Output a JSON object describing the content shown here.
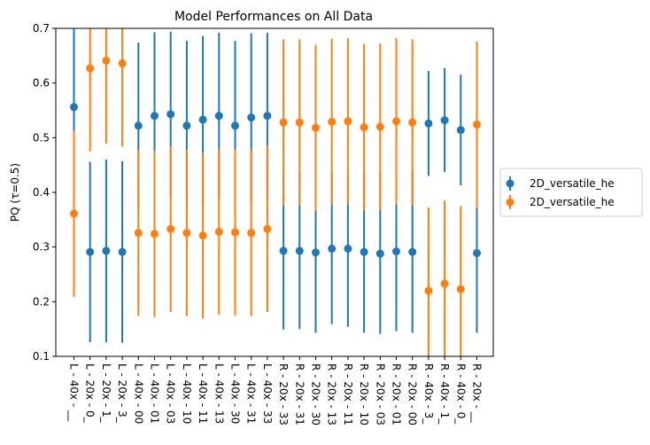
{
  "chart_data": {
    "type": "scatter",
    "title": "Model Performances on All Data",
    "xlabel": "",
    "ylabel": "PQ  (τ=0.5)",
    "ylim": [
      0.1,
      0.7
    ],
    "yticks": [
      "0.1",
      "0.2",
      "0.3",
      "0.4",
      "0.5",
      "0.6",
      "0.7"
    ],
    "grid": false,
    "legend_position": "outside-right",
    "categories": [
      "L - 40x - __",
      "L - 20x - 0_",
      "L - 20x - 1_",
      "L - 20x - 3_",
      "L - 40x - 00",
      "L - 40x - 01",
      "L - 40x - 03",
      "L - 40x - 10",
      "L - 40x - 11",
      "L - 40x - 13",
      "L - 40x - 30",
      "L - 40x - 31",
      "L - 40x - 33",
      "R - 20x - 33",
      "R - 20x - 31",
      "R - 20x - 30",
      "R - 20x - 13",
      "R - 20x - 11",
      "R - 20x - 10",
      "R - 20x - 03",
      "R - 20x - 01",
      "R - 20x - 00",
      "R - 40x - 3_",
      "R - 40x - 1_",
      "R - 40x - 0_",
      "R - 20x - __"
    ],
    "series": [
      {
        "name": "2D_versatile_he",
        "color": "#1f77b4",
        "values": [
          0.556,
          0.291,
          0.293,
          0.291,
          0.522,
          0.54,
          0.543,
          0.522,
          0.533,
          0.54,
          0.522,
          0.537,
          0.54,
          0.293,
          0.293,
          0.29,
          0.297,
          0.297,
          0.291,
          0.288,
          0.292,
          0.291,
          0.526,
          0.532,
          0.514,
          0.289
        ],
        "errors": [
          0.158,
          0.165,
          0.167,
          0.166,
          0.152,
          0.153,
          0.151,
          0.155,
          0.153,
          0.152,
          0.155,
          0.154,
          0.152,
          0.144,
          0.143,
          0.147,
          0.138,
          0.143,
          0.148,
          0.147,
          0.146,
          0.148,
          0.096,
          0.095,
          0.101,
          0.146
        ]
      },
      {
        "name": "2D_versatile_he",
        "color": "#ff7f0e",
        "values": [
          0.361,
          0.627,
          0.641,
          0.636,
          0.326,
          0.324,
          0.333,
          0.326,
          0.321,
          0.328,
          0.327,
          0.326,
          0.333,
          0.528,
          0.528,
          0.518,
          0.529,
          0.53,
          0.519,
          0.52,
          0.53,
          0.528,
          0.22,
          0.233,
          0.223,
          0.524
        ]
      }
    ]
  }
}
